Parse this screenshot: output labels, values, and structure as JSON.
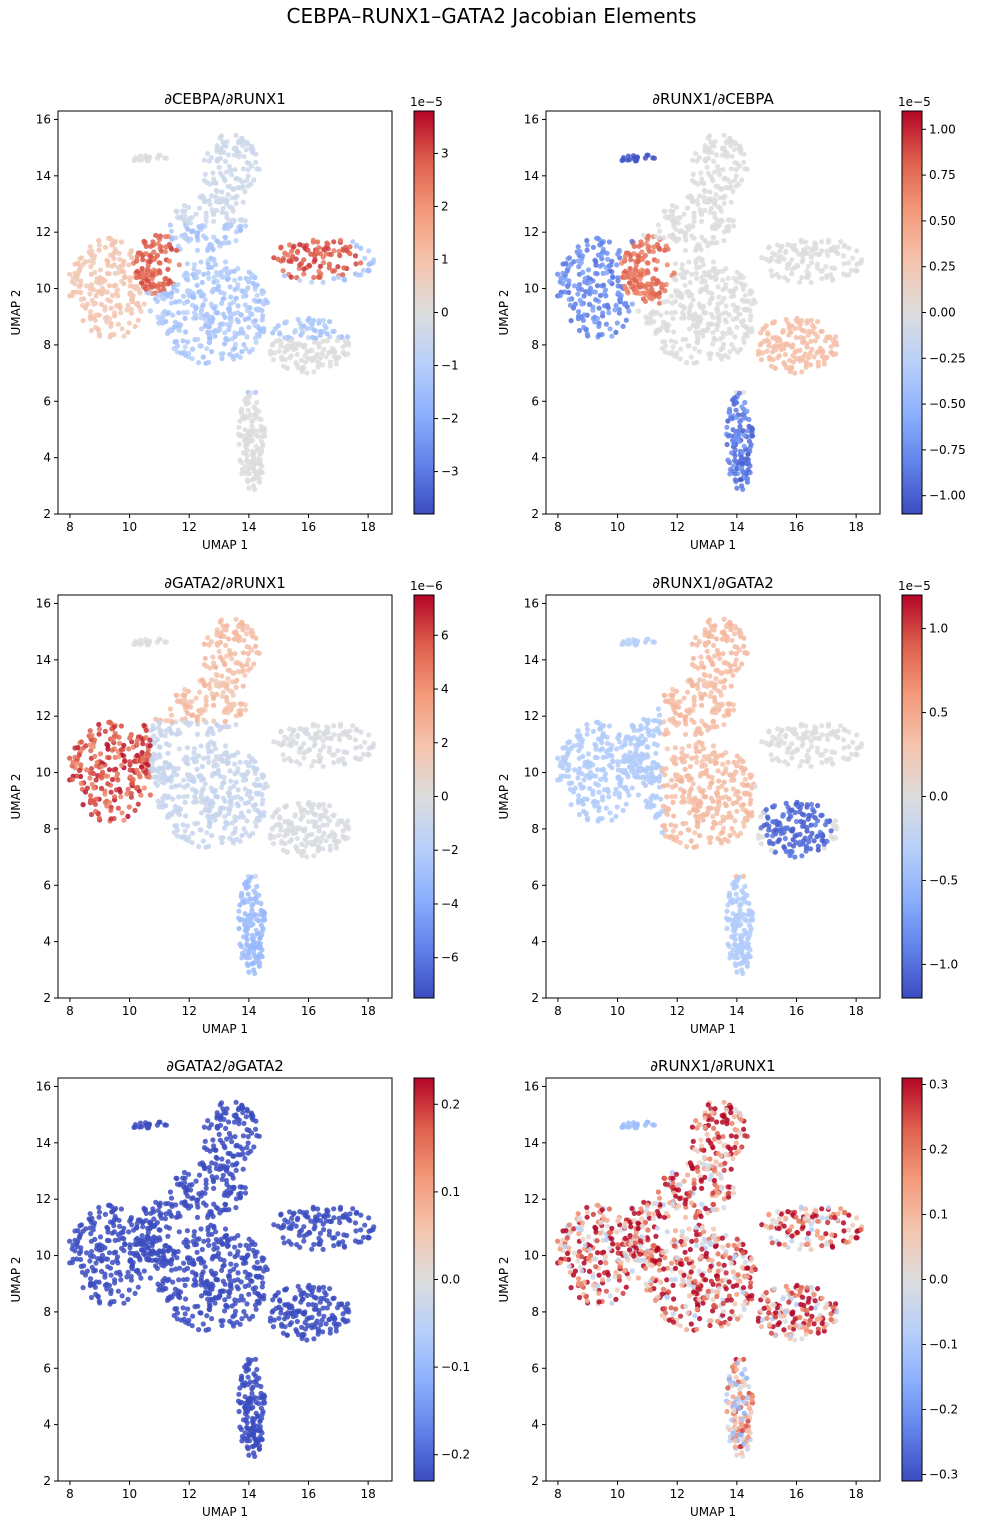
{
  "figure": {
    "suptitle": "CEBPA–RUNX1–GATA2 Jacobian Elements"
  },
  "chart_data": [
    {
      "type": "scatter",
      "title": "∂CEBPA/∂RUNX1",
      "xlabel": "UMAP 1",
      "ylabel": "UMAP 2",
      "xlim": [
        7.6,
        18.8
      ],
      "ylim": [
        2.0,
        16.3
      ],
      "xticks": [
        8,
        10,
        12,
        14,
        16,
        18
      ],
      "yticks": [
        2,
        4,
        6,
        8,
        10,
        12,
        14,
        16
      ],
      "colorbar": {
        "cmap": "coolwarm",
        "vmin": -3.8,
        "vmax": 3.8,
        "ticks": [
          -3,
          -2,
          -1,
          0,
          1,
          2,
          3
        ],
        "exponent": "1e−5"
      },
      "regions": [
        {
          "name": "left-lobe",
          "value": 0.9
        },
        {
          "name": "upper-left-patch",
          "value": 3.2
        },
        {
          "name": "right-arm-patch",
          "value": 3.4
        },
        {
          "name": "center-lower",
          "value": -1.3
        },
        {
          "name": "top-lobe",
          "value": -0.4
        },
        {
          "name": "right-lower",
          "value": 0.0
        },
        {
          "name": "stem",
          "value": 0.0
        },
        {
          "name": "top-left-tail",
          "value": 0.0
        }
      ]
    },
    {
      "type": "scatter",
      "title": "∂RUNX1/∂CEBPA",
      "xlabel": "UMAP 1",
      "ylabel": "UMAP 2",
      "xlim": [
        7.6,
        18.8
      ],
      "ylim": [
        2.0,
        16.3
      ],
      "xticks": [
        8,
        10,
        12,
        14,
        16,
        18
      ],
      "yticks": [
        2,
        4,
        6,
        8,
        10,
        12,
        14,
        16
      ],
      "colorbar": {
        "cmap": "coolwarm",
        "vmin": -1.1,
        "vmax": 1.1,
        "ticks": [
          -1.0,
          -0.75,
          -0.5,
          -0.25,
          0.0,
          0.25,
          0.5,
          0.75,
          1.0
        ],
        "tick_labels": [
          "−1.00",
          "−0.75",
          "−0.50",
          "−0.25",
          "0.00",
          "0.25",
          "0.50",
          "0.75",
          "1.00"
        ],
        "exponent": "1e−5"
      },
      "regions": [
        {
          "name": "left-lobe",
          "value": -0.85
        },
        {
          "name": "upper-left-patch",
          "value": 0.85
        },
        {
          "name": "top-left-tail",
          "value": -1.05
        },
        {
          "name": "stem",
          "value": -0.95
        },
        {
          "name": "right-lower",
          "value": 0.3
        },
        {
          "name": "center",
          "value": 0.0
        }
      ]
    },
    {
      "type": "scatter",
      "title": "∂GATA2/∂RUNX1",
      "xlabel": "UMAP 1",
      "ylabel": "UMAP 2",
      "xlim": [
        7.6,
        18.8
      ],
      "ylim": [
        2.0,
        16.3
      ],
      "xticks": [
        8,
        10,
        12,
        14,
        16,
        18
      ],
      "yticks": [
        2,
        4,
        6,
        8,
        10,
        12,
        14,
        16
      ],
      "colorbar": {
        "cmap": "coolwarm",
        "vmin": -7.5,
        "vmax": 7.5,
        "ticks": [
          -6,
          -4,
          -2,
          0,
          2,
          4,
          6
        ],
        "exponent": "1e−6"
      },
      "regions": [
        {
          "name": "left-lobe",
          "value": 6.8
        },
        {
          "name": "top-lobe",
          "value": 2.2
        },
        {
          "name": "center-lower",
          "value": -1.2
        },
        {
          "name": "stem",
          "value": -3.2
        },
        {
          "name": "right",
          "value": -0.5
        },
        {
          "name": "top-left-tail",
          "value": 0.0
        }
      ]
    },
    {
      "type": "scatter",
      "title": "∂RUNX1/∂GATA2",
      "xlabel": "UMAP 1",
      "ylabel": "UMAP 2",
      "xlim": [
        7.6,
        18.8
      ],
      "ylim": [
        2.0,
        16.3
      ],
      "xticks": [
        8,
        10,
        12,
        14,
        16,
        18
      ],
      "yticks": [
        2,
        4,
        6,
        8,
        10,
        12,
        14,
        16
      ],
      "colorbar": {
        "cmap": "coolwarm",
        "vmin": -1.2,
        "vmax": 1.2,
        "ticks": [
          -1.0,
          -0.5,
          0.0,
          0.5,
          1.0
        ],
        "tick_labels": [
          "−1.0",
          "−0.5",
          "0.0",
          "0.5",
          "1.0"
        ],
        "exponent": "1e−5"
      },
      "regions": [
        {
          "name": "top-and-center",
          "value": 0.35
        },
        {
          "name": "left-lobe",
          "value": -0.35
        },
        {
          "name": "stem",
          "value": -0.35
        },
        {
          "name": "right-lower-patch",
          "value": -1.1
        },
        {
          "name": "right-upper",
          "value": 0.0
        },
        {
          "name": "top-left-tail",
          "value": -0.3
        }
      ]
    },
    {
      "type": "scatter",
      "title": "∂GATA2/∂GATA2",
      "xlabel": "UMAP 1",
      "ylabel": "UMAP 2",
      "xlim": [
        7.6,
        18.8
      ],
      "ylim": [
        2.0,
        16.3
      ],
      "xticks": [
        8,
        10,
        12,
        14,
        16,
        18
      ],
      "yticks": [
        2,
        4,
        6,
        8,
        10,
        12,
        14,
        16
      ],
      "colorbar": {
        "cmap": "coolwarm",
        "vmin": -0.23,
        "vmax": 0.23,
        "ticks": [
          -0.2,
          -0.1,
          0.0,
          0.1,
          0.2
        ],
        "tick_labels": [
          "−0.2",
          "−0.1",
          "0.0",
          "0.1",
          "0.2"
        ]
      },
      "regions": [
        {
          "name": "all-cells",
          "value": -0.23
        }
      ]
    },
    {
      "type": "scatter",
      "title": "∂RUNX1/∂RUNX1",
      "xlabel": "UMAP 1",
      "ylabel": "UMAP 2",
      "xlim": [
        7.6,
        18.8
      ],
      "ylim": [
        2.0,
        16.3
      ],
      "xticks": [
        8,
        10,
        12,
        14,
        16,
        18
      ],
      "yticks": [
        2,
        4,
        6,
        8,
        10,
        12,
        14,
        16
      ],
      "colorbar": {
        "cmap": "coolwarm",
        "vmin": -0.31,
        "vmax": 0.31,
        "ticks": [
          -0.3,
          -0.2,
          -0.1,
          0.0,
          0.1,
          0.2,
          0.3
        ],
        "tick_labels": [
          "−0.3",
          "−0.2",
          "−0.1",
          "0.0",
          "0.1",
          "0.2",
          "0.3"
        ]
      },
      "regions": [
        {
          "name": "mixed-body",
          "value": 0.18,
          "spread": 0.3
        },
        {
          "name": "top-left-tail",
          "value": -0.12
        },
        {
          "name": "stem",
          "value": 0.05,
          "spread": 0.25
        }
      ]
    }
  ]
}
